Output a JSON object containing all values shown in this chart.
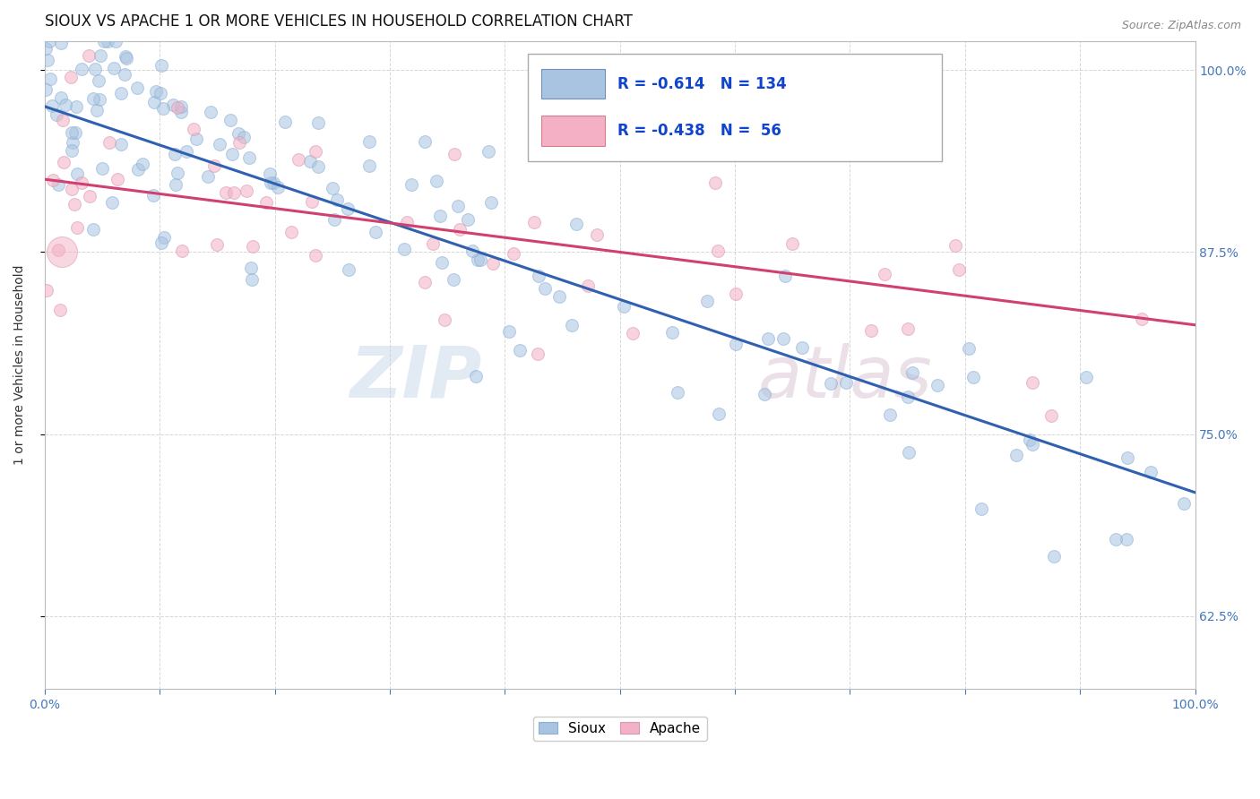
{
  "title": "SIOUX VS APACHE 1 OR MORE VEHICLES IN HOUSEHOLD CORRELATION CHART",
  "source_text": "Source: ZipAtlas.com",
  "ylabel": "1 or more Vehicles in Household",
  "watermark_zip": "ZIP",
  "watermark_atlas": "atlas",
  "sioux_R": -0.614,
  "sioux_N": 134,
  "apache_R": -0.438,
  "apache_N": 56,
  "sioux_color": "#a8c4e0",
  "apache_color": "#f4b0c4",
  "sioux_line_color": "#3060b0",
  "apache_line_color": "#d04070",
  "xlim": [
    0.0,
    1.0
  ],
  "ylim": [
    0.575,
    1.02
  ],
  "y_ticks": [
    0.625,
    0.75,
    0.875,
    1.0
  ],
  "y_tick_labels": [
    "62.5%",
    "75.0%",
    "87.5%",
    "100.0%"
  ],
  "x_tick_positions": [
    0.0,
    0.1,
    0.2,
    0.3,
    0.4,
    0.5,
    0.6,
    0.7,
    0.8,
    0.9,
    1.0
  ],
  "x_tick_labels": [
    "0.0%",
    "",
    "",
    "",
    "",
    "",
    "",
    "",
    "",
    "",
    "100.0%"
  ],
  "background_color": "#ffffff",
  "grid_color": "#cccccc",
  "title_fontsize": 12,
  "axis_label_fontsize": 10,
  "tick_fontsize": 10,
  "dot_size": 100,
  "dot_alpha": 0.55,
  "sioux_line_intercept": 0.975,
  "sioux_line_slope": -0.265,
  "apache_line_intercept": 0.925,
  "apache_line_slope": -0.1
}
